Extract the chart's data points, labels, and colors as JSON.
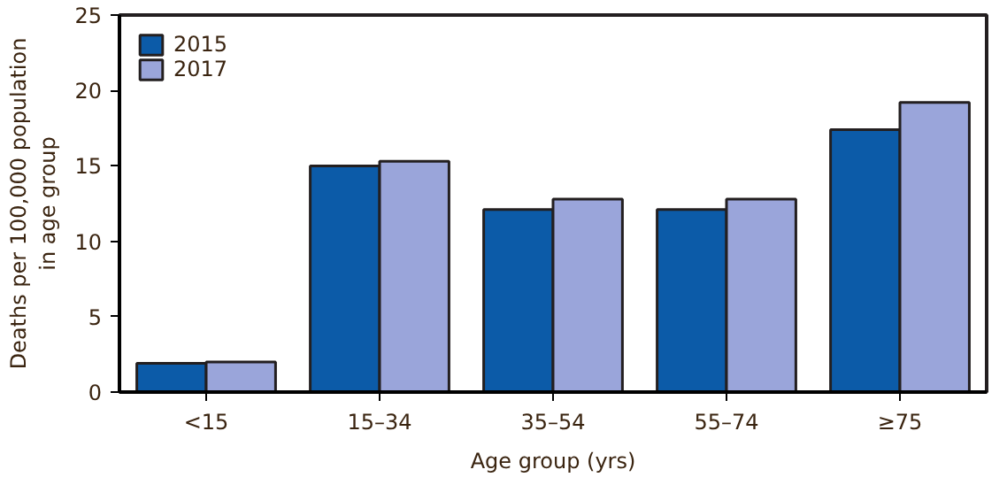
{
  "chart_data": {
    "type": "bar",
    "xlabel": "Age group (yrs)",
    "ylabel": "Deaths per 100,000 population\nin age group",
    "categories": [
      "<15",
      "15–34",
      "35–54",
      "55–74",
      "≥75"
    ],
    "series": [
      {
        "name": "2015",
        "color": "#0c5ba8",
        "values": [
          1.9,
          15.0,
          12.1,
          12.1,
          17.4
        ]
      },
      {
        "name": "2017",
        "color": "#9aa5da",
        "values": [
          2.0,
          15.3,
          12.8,
          12.8,
          19.2
        ]
      }
    ],
    "ylim": [
      0,
      25
    ],
    "yticks": [
      0,
      5,
      10,
      15,
      20,
      25
    ],
    "grid": false,
    "legend": "top left"
  }
}
